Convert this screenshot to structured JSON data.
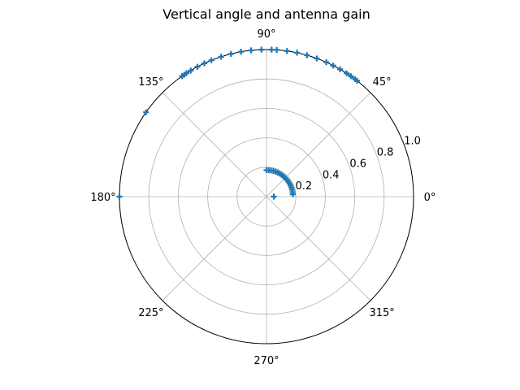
{
  "chart_data": {
    "type": "scatter",
    "projection": "polar",
    "title": "Vertical angle and antenna gain",
    "angle_tick_labels": [
      "0°",
      "45°",
      "90°",
      "135°",
      "180°",
      "225°",
      "270°",
      "315°"
    ],
    "angle_ticks_deg": [
      0,
      45,
      90,
      135,
      180,
      225,
      270,
      315
    ],
    "radial_tick_labels": [
      "0.2",
      "0.4",
      "0.6",
      "0.8",
      "1.0"
    ],
    "radial_ticks": [
      0.2,
      0.4,
      0.6,
      0.8,
      1.0
    ],
    "rlim": [
      0,
      1.0
    ],
    "radial_label_angle_deg": 22.5,
    "grid": true,
    "marker": "plus",
    "color": "#1f77b4",
    "series": [
      {
        "theta_deg": [
          0,
          5,
          10,
          15,
          20,
          25,
          30,
          35,
          40,
          45,
          50,
          55,
          60,
          65,
          70,
          75,
          80,
          85,
          90
        ],
        "r": [
          0.05,
          0.18,
          0.18,
          0.18,
          0.18,
          0.18,
          0.18,
          0.18,
          0.18,
          0.18,
          0.18,
          0.18,
          0.18,
          0.18,
          0.18,
          0.18,
          0.18,
          0.18,
          0.18
        ]
      },
      {
        "theta_deg": [
          52,
          53,
          55,
          57,
          60,
          63,
          66,
          70,
          74,
          78,
          82,
          86,
          88,
          92,
          96,
          100,
          104,
          108,
          112,
          115,
          118,
          121,
          123,
          124,
          125,
          145,
          180
        ],
        "r": [
          1.0,
          1.0,
          1.0,
          1.0,
          1.0,
          1.0,
          1.0,
          1.0,
          1.0,
          1.0,
          1.0,
          1.0,
          1.0,
          1.0,
          1.0,
          1.0,
          1.0,
          1.0,
          1.0,
          1.0,
          1.0,
          1.0,
          1.0,
          1.0,
          1.0,
          1.0,
          1.0
        ]
      }
    ]
  }
}
